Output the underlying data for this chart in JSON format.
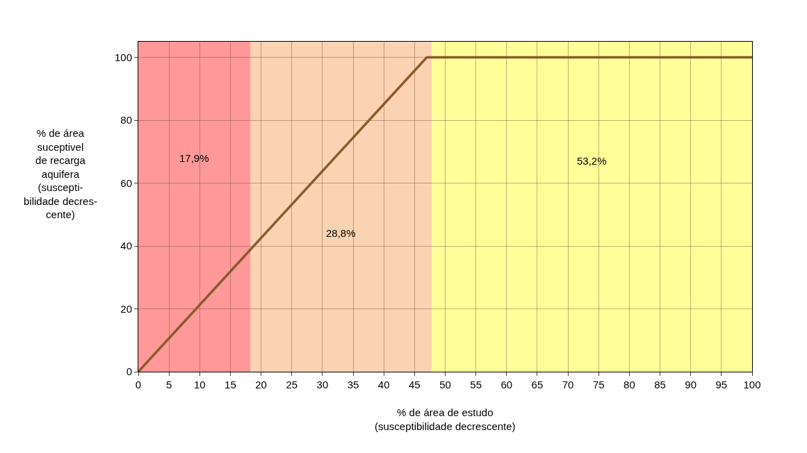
{
  "chart_data": {
    "type": "line",
    "xlabel": "% de área de estudo\n(susceptibilidade decrescente)",
    "ylabel": "% de área\nsuceptivel\nde recarga\naquifera\n(suscepti-\nbilidade decres-\ncente)",
    "x": [
      0,
      47,
      100
    ],
    "series": [
      {
        "color": "#8b5a2b",
        "values": [
          0,
          100,
          100
        ]
      }
    ],
    "xlim": [
      0,
      100
    ],
    "xticks": [
      0,
      5,
      10,
      15,
      20,
      25,
      30,
      35,
      40,
      45,
      50,
      55,
      60,
      65,
      70,
      75,
      80,
      85,
      90,
      95,
      100
    ],
    "ylim": [
      0,
      105
    ],
    "yticks": [
      0,
      20,
      40,
      60,
      80,
      100
    ],
    "grid": true,
    "marker": "none",
    "line_style": "solid",
    "bands": [
      {
        "axis": "x",
        "from": 0,
        "to": 18.3,
        "color": "#ff7f7f",
        "label": "17,9%"
      },
      {
        "axis": "x",
        "from": 18.3,
        "to": 47.8,
        "color": "#f9c8a0",
        "label": "28,8%"
      },
      {
        "axis": "x",
        "from": 47.8,
        "to": 100,
        "color": "#ffff7f",
        "label": "53,2%"
      }
    ]
  }
}
